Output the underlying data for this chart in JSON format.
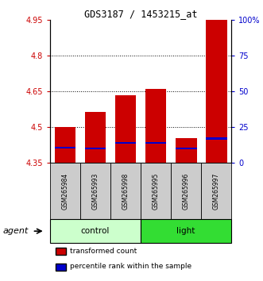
{
  "title": "GDS3187 / 1453215_at",
  "samples": [
    "GSM265984",
    "GSM265993",
    "GSM265998",
    "GSM265995",
    "GSM265996",
    "GSM265997"
  ],
  "groups": [
    "control",
    "control",
    "control",
    "light",
    "light",
    "light"
  ],
  "bar_tops": [
    4.5,
    4.565,
    4.635,
    4.66,
    4.455,
    4.95
  ],
  "bar_bottoms": [
    4.35,
    4.35,
    4.35,
    4.35,
    4.35,
    4.35
  ],
  "blue_vals": [
    4.415,
    4.41,
    4.435,
    4.435,
    4.41,
    4.452
  ],
  "blue_heights": [
    0.008,
    0.008,
    0.008,
    0.008,
    0.008,
    0.008
  ],
  "ylim_left": [
    4.35,
    4.95
  ],
  "yticks_left": [
    4.35,
    4.5,
    4.65,
    4.8,
    4.95
  ],
  "ytick_labels_left": [
    "4.35",
    "4.5",
    "4.65",
    "4.8",
    "4.95"
  ],
  "ylim_right": [
    0,
    100
  ],
  "yticks_right": [
    0,
    25,
    50,
    75,
    100
  ],
  "ytick_labels_right": [
    "0",
    "25",
    "50",
    "75",
    "100%"
  ],
  "hlines": [
    4.5,
    4.65,
    4.8
  ],
  "bar_color": "#cc0000",
  "blue_color": "#0000cc",
  "left_tick_color": "#cc0000",
  "right_tick_color": "#0000cc",
  "group_colors": {
    "control": "#ccffcc",
    "light": "#33dd33"
  },
  "agent_label": "agent",
  "legend_items": [
    {
      "label": "transformed count",
      "color": "#cc0000"
    },
    {
      "label": "percentile rank within the sample",
      "color": "#0000cc"
    }
  ],
  "bar_width": 0.7,
  "figsize": [
    3.31,
    3.54
  ],
  "dpi": 100
}
